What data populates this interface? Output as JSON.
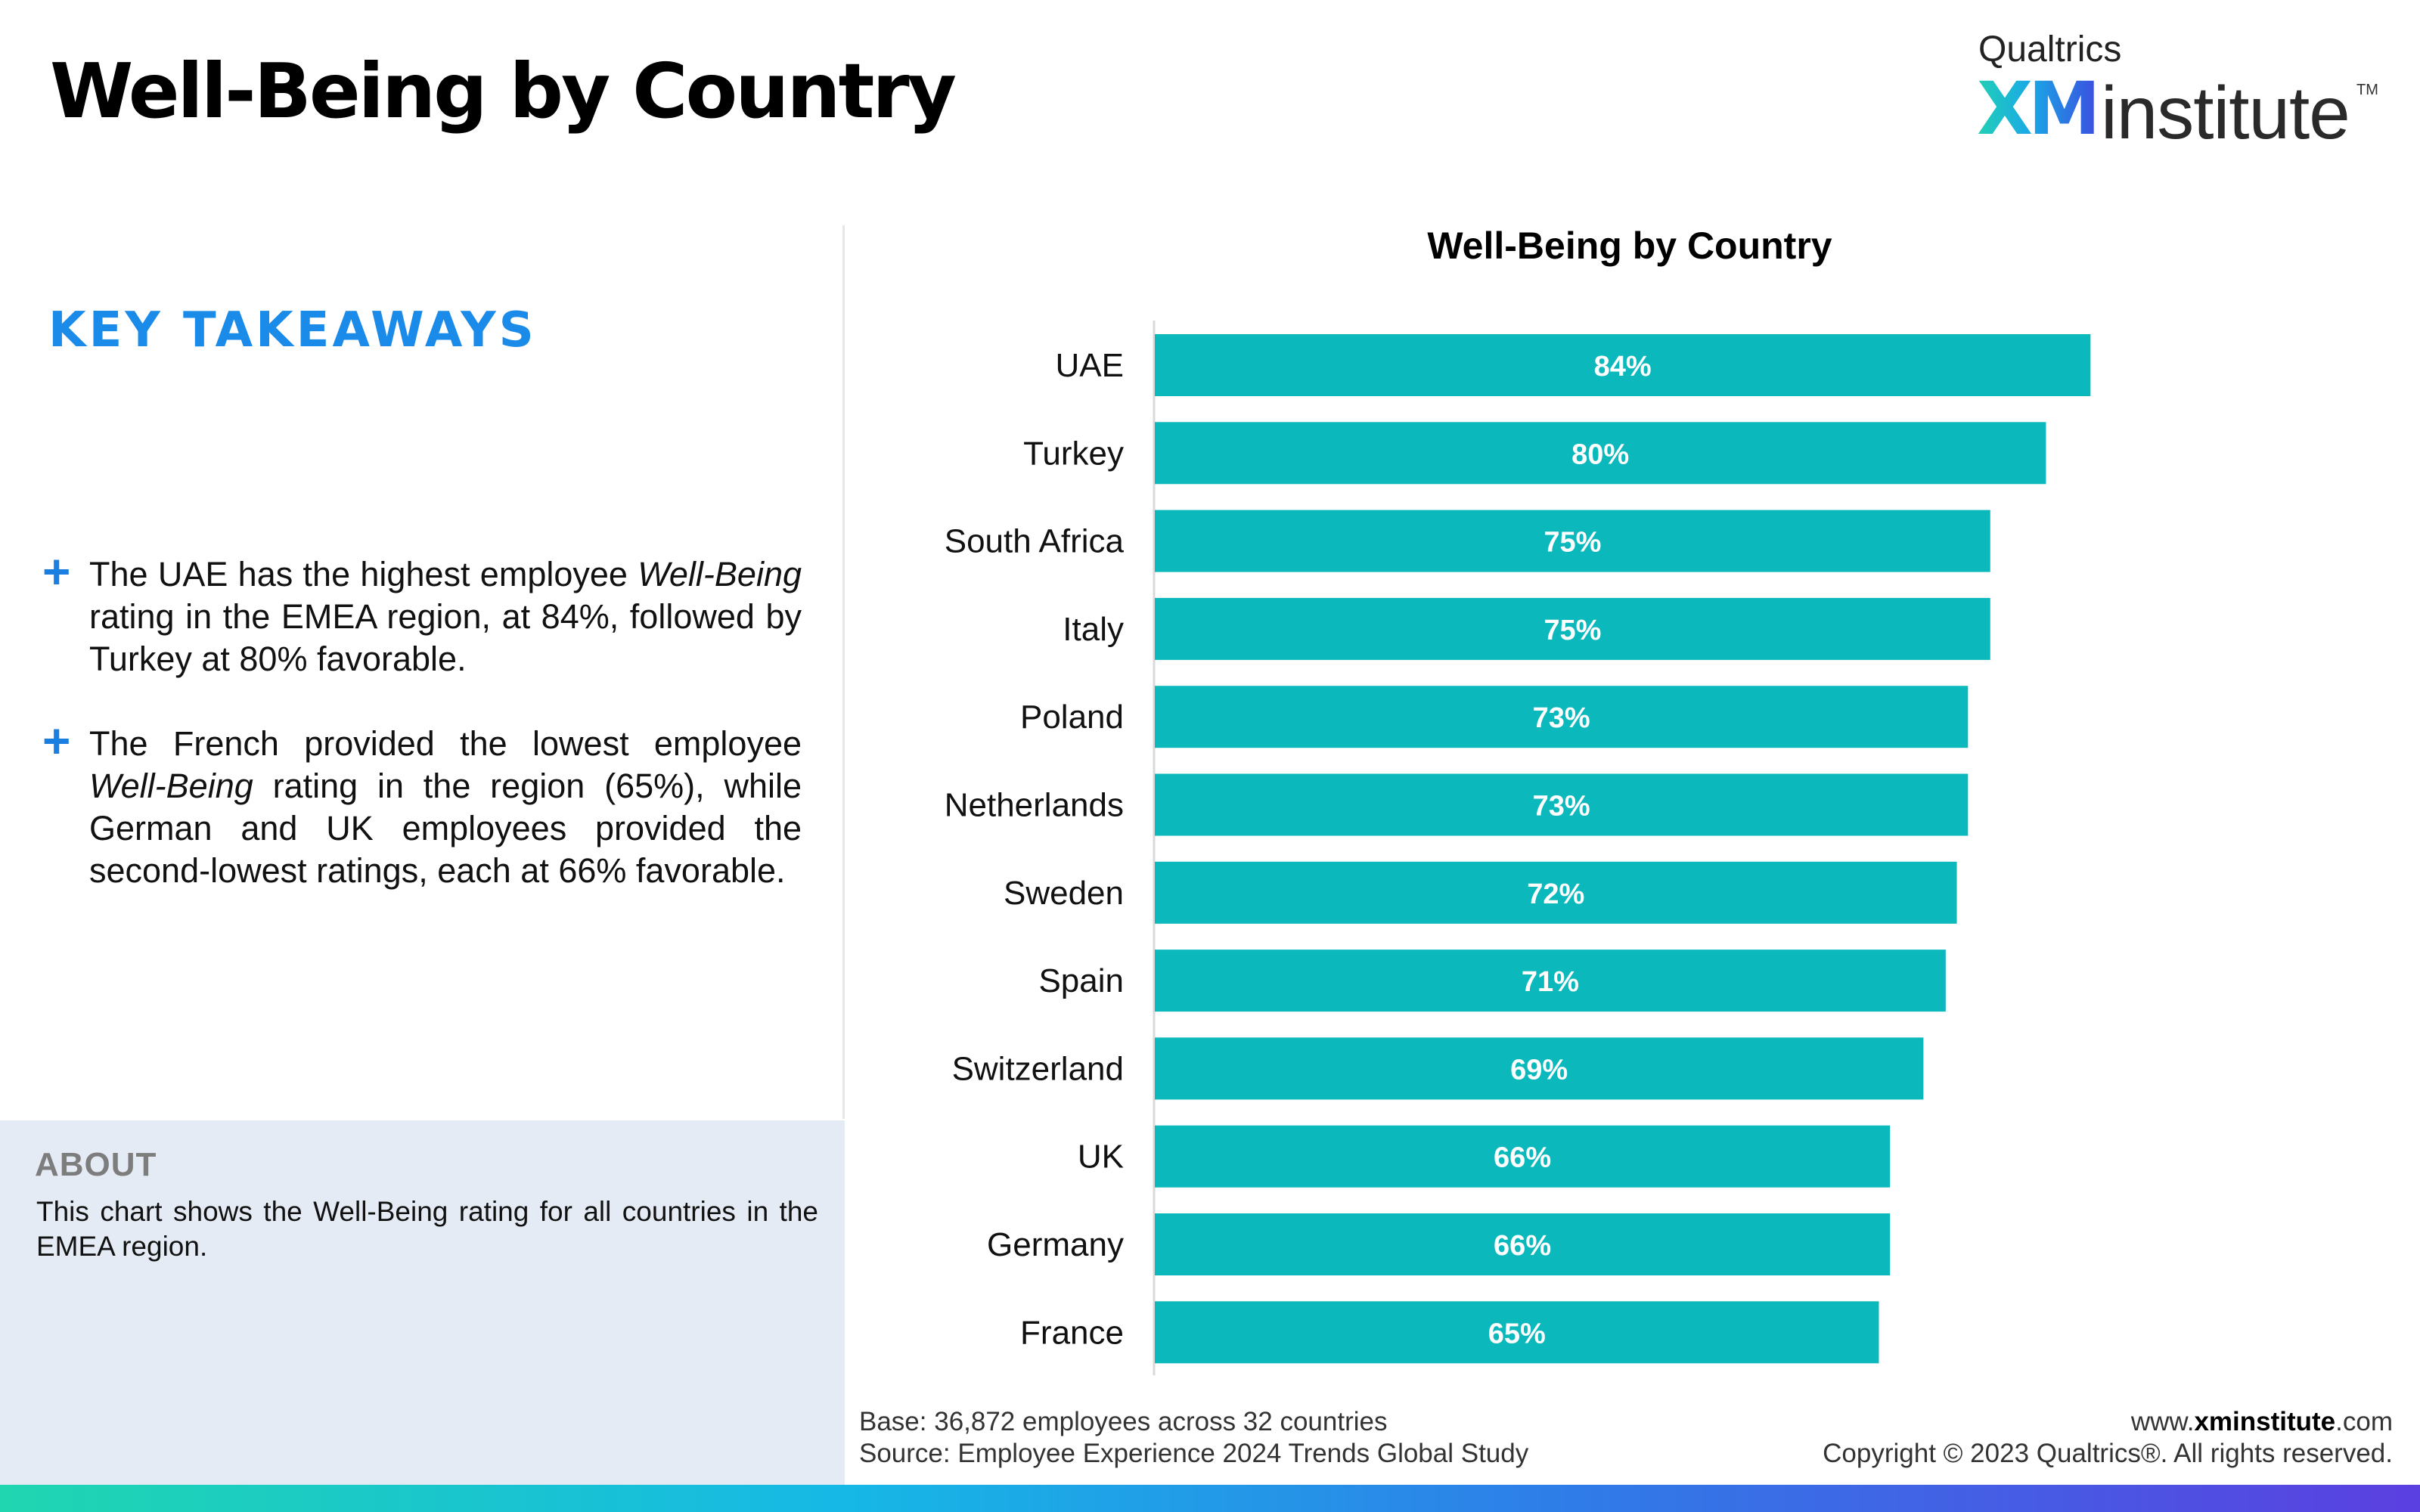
{
  "header": {
    "title": "Well-Being by Country"
  },
  "logo": {
    "top": "Qualtrics",
    "xm": "XM",
    "institute": "institute",
    "tm": "TM"
  },
  "left_panel": {
    "heading": "KEY TAKEAWAYS",
    "takeaways": [
      {
        "plus": "+",
        "parts": [
          "The UAE has the highest employee ",
          "Well-Being",
          " rating in the EMEA region, at 84%, followed by Turkey at 80% favorable."
        ]
      },
      {
        "plus": "+",
        "parts": [
          "The French provided the lowest employee ",
          "Well-Being",
          " rating in the region (65%), while German and UK employees provided the second-lowest ratings, each at 66% favorable."
        ]
      }
    ],
    "about": {
      "title": "ABOUT",
      "text": "This chart shows the Well-Being rating for all countries in the EMEA region."
    }
  },
  "footer": {
    "base": "Base: 36,872 employees across 32 countries",
    "source": "Source: Employee Experience 2024 Trends Global Study",
    "url_prefix": "www.",
    "url_bold": "xminstitute",
    "url_suffix": ".com",
    "copyright": "Copyright © 2023 Qualtrics®. All rights reserved."
  },
  "chart_data": {
    "type": "bar",
    "orientation": "horizontal",
    "title": "Well-Being by Country",
    "categories": [
      "UAE",
      "Turkey",
      "South Africa",
      "Italy",
      "Poland",
      "Netherlands",
      "Sweden",
      "Spain",
      "Switzerland",
      "UK",
      "Germany",
      "France"
    ],
    "values": [
      84,
      80,
      75,
      75,
      73,
      73,
      72,
      71,
      69,
      66,
      66,
      65
    ],
    "value_labels": [
      "84%",
      "80%",
      "75%",
      "75%",
      "73%",
      "73%",
      "72%",
      "71%",
      "69%",
      "66%",
      "66%",
      "65%"
    ],
    "unit": "%",
    "xlim": [
      0,
      100
    ],
    "grid": false,
    "legend": "none",
    "bar_color": "#0bb9bd"
  }
}
